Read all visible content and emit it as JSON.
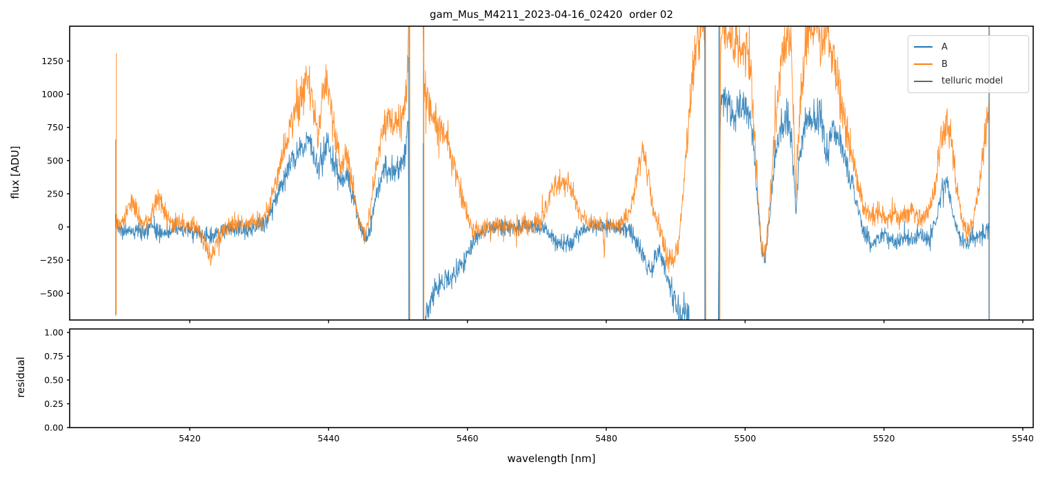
{
  "chart_data": {
    "type": "line",
    "title": "gam_Mus_M4211_2023-04-16_02420  order 02",
    "xlabel": "wavelength [nm]",
    "xlim": [
      5402.7,
      5541.5
    ],
    "xticks": [
      5420,
      5440,
      5460,
      5480,
      5500,
      5520,
      5540
    ],
    "x_data_range": [
      5409.3,
      5535.15
    ],
    "samples": 2500,
    "noise_seed": 42,
    "panels": [
      {
        "name": "flux",
        "ylabel": "flux [ADU]",
        "ylim": [
          -701,
          1512
        ],
        "yticks": [
          1250,
          1000,
          750,
          500,
          250,
          0,
          -250,
          -500
        ],
        "ytick_labels": [
          "1250",
          "1000",
          "750",
          "500",
          "250",
          "0",
          "−250",
          "−500"
        ],
        "empty": false
      },
      {
        "name": "residual",
        "ylabel": "residual",
        "ylim": [
          0,
          1.036
        ],
        "yticks": [
          1.0,
          0.75,
          0.5,
          0.25,
          0.0
        ],
        "ytick_labels": [
          "1.00",
          "0.75",
          "0.50",
          "0.25",
          "0.00"
        ],
        "empty": true
      }
    ],
    "series": [
      {
        "name": "A",
        "color": "#1f77b4",
        "opacity": 0.85,
        "noise_std": 48,
        "mean_points": [
          [
            5409.5,
            40
          ],
          [
            5410.5,
            -50
          ],
          [
            5411.5,
            -20
          ],
          [
            5413,
            -40
          ],
          [
            5414.5,
            -10
          ],
          [
            5416,
            -50
          ],
          [
            5417.5,
            -30
          ],
          [
            5419,
            -20
          ],
          [
            5420.5,
            -30
          ],
          [
            5421.8,
            -60
          ],
          [
            5423,
            -80
          ],
          [
            5424.5,
            -40
          ],
          [
            5426,
            -15
          ],
          [
            5427.5,
            -25
          ],
          [
            5429,
            -10
          ],
          [
            5430.5,
            20
          ],
          [
            5431.8,
            120
          ],
          [
            5433,
            300
          ],
          [
            5434.5,
            480
          ],
          [
            5436,
            590
          ],
          [
            5437.2,
            660
          ],
          [
            5438.4,
            430
          ],
          [
            5439.7,
            650
          ],
          [
            5440.8,
            480
          ],
          [
            5441.8,
            340
          ],
          [
            5442.8,
            380
          ],
          [
            5443.8,
            180
          ],
          [
            5444.6,
            -30
          ],
          [
            5445.4,
            -110
          ],
          [
            5446.2,
            40
          ],
          [
            5447.2,
            330
          ],
          [
            5448.2,
            450
          ],
          [
            5449.2,
            420
          ],
          [
            5450.2,
            430
          ],
          [
            5451,
            560
          ],
          [
            5451.45,
            820
          ],
          [
            5451.7,
            -900
          ],
          [
            5453.5,
            -900
          ],
          [
            5454.2,
            -620
          ],
          [
            5455.2,
            -500
          ],
          [
            5456.3,
            -420
          ],
          [
            5457.5,
            -400
          ],
          [
            5458.6,
            -330
          ],
          [
            5459.8,
            -220
          ],
          [
            5461,
            -110
          ],
          [
            5462,
            -40
          ],
          [
            5463.5,
            -10
          ],
          [
            5465,
            0
          ],
          [
            5466.5,
            -5
          ],
          [
            5468,
            5
          ],
          [
            5469.5,
            0
          ],
          [
            5471,
            -20
          ],
          [
            5472.3,
            -70
          ],
          [
            5473.6,
            -130
          ],
          [
            5475,
            -115
          ],
          [
            5476.3,
            -40
          ],
          [
            5477.5,
            0
          ],
          [
            5479,
            5
          ],
          [
            5480.5,
            0
          ],
          [
            5482,
            -5
          ],
          [
            5483.3,
            -30
          ],
          [
            5484.5,
            -120
          ],
          [
            5485.6,
            -260
          ],
          [
            5486.6,
            -320
          ],
          [
            5487.4,
            -160
          ],
          [
            5488.2,
            -260
          ],
          [
            5489,
            -440
          ],
          [
            5489.8,
            -580
          ],
          [
            5490.6,
            -690
          ],
          [
            5491.4,
            -620
          ],
          [
            5492,
            -690
          ],
          [
            5492.5,
            -900
          ],
          [
            5495.9,
            -900
          ],
          [
            5496.1,
            -900
          ],
          [
            5496.45,
            900
          ],
          [
            5497,
            1000
          ],
          [
            5497.6,
            900
          ],
          [
            5498.3,
            850
          ],
          [
            5499,
            920
          ],
          [
            5499.8,
            880
          ],
          [
            5500.6,
            840
          ],
          [
            5501.4,
            500
          ],
          [
            5502.2,
            -80
          ],
          [
            5502.8,
            -250
          ],
          [
            5503.5,
            60
          ],
          [
            5504.3,
            520
          ],
          [
            5505.2,
            760
          ],
          [
            5506,
            820
          ],
          [
            5506.7,
            700
          ],
          [
            5507.3,
            120
          ],
          [
            5507.9,
            560
          ],
          [
            5508.6,
            780
          ],
          [
            5509.4,
            820
          ],
          [
            5510.2,
            800
          ],
          [
            5511,
            830
          ],
          [
            5511.7,
            500
          ],
          [
            5512.4,
            740
          ],
          [
            5513.2,
            700
          ],
          [
            5514,
            620
          ],
          [
            5515,
            380
          ],
          [
            5516,
            180
          ],
          [
            5517,
            -20
          ],
          [
            5518.2,
            -150
          ],
          [
            5519,
            -70
          ],
          [
            5520,
            -60
          ],
          [
            5521,
            -90
          ],
          [
            5522,
            -110
          ],
          [
            5523,
            -70
          ],
          [
            5524,
            -90
          ],
          [
            5525,
            -60
          ],
          [
            5526,
            -80
          ],
          [
            5527,
            -50
          ],
          [
            5528,
            180
          ],
          [
            5528.7,
            370
          ],
          [
            5529.4,
            250
          ],
          [
            5530.2,
            30
          ],
          [
            5531,
            -80
          ],
          [
            5531.8,
            -130
          ],
          [
            5532.6,
            -80
          ],
          [
            5533.4,
            -70
          ],
          [
            5534.2,
            -50
          ],
          [
            5535.1,
            -30
          ]
        ]
      },
      {
        "name": "B",
        "color": "#ff7f0e",
        "opacity": 0.85,
        "noise_std": 55,
        "mean_points": [
          [
            5409.5,
            30
          ],
          [
            5410.5,
            40
          ],
          [
            5411.5,
            200
          ],
          [
            5412.3,
            120
          ],
          [
            5413.2,
            20
          ],
          [
            5414.3,
            60
          ],
          [
            5415.4,
            240
          ],
          [
            5416.3,
            120
          ],
          [
            5417.3,
            30
          ],
          [
            5418.5,
            40
          ],
          [
            5419.7,
            20
          ],
          [
            5421,
            10
          ],
          [
            5422.2,
            -120
          ],
          [
            5423,
            -250
          ],
          [
            5423.8,
            -120
          ],
          [
            5425,
            -10
          ],
          [
            5426.3,
            20
          ],
          [
            5427.6,
            10
          ],
          [
            5429,
            25
          ],
          [
            5430.3,
            40
          ],
          [
            5431.5,
            160
          ],
          [
            5432.8,
            420
          ],
          [
            5434.2,
            700
          ],
          [
            5435.5,
            900
          ],
          [
            5436.6,
            1030
          ],
          [
            5437.3,
            1070
          ],
          [
            5438.4,
            700
          ],
          [
            5439.3,
            1020
          ],
          [
            5440,
            1000
          ],
          [
            5440.9,
            760
          ],
          [
            5441.7,
            440
          ],
          [
            5442.5,
            540
          ],
          [
            5443.4,
            330
          ],
          [
            5444.3,
            60
          ],
          [
            5445.2,
            -60
          ],
          [
            5446,
            120
          ],
          [
            5447,
            480
          ],
          [
            5448,
            760
          ],
          [
            5448.8,
            830
          ],
          [
            5449.6,
            760
          ],
          [
            5450.4,
            800
          ],
          [
            5451.1,
            950
          ],
          [
            5451.45,
            1300
          ],
          [
            5451.7,
            1700
          ],
          [
            5453.5,
            1700
          ],
          [
            5453.8,
            1020
          ],
          [
            5454.6,
            900
          ],
          [
            5455.5,
            790
          ],
          [
            5456.5,
            740
          ],
          [
            5457.4,
            620
          ],
          [
            5458.3,
            430
          ],
          [
            5459.2,
            230
          ],
          [
            5460.1,
            60
          ],
          [
            5461,
            -40
          ],
          [
            5462,
            -20
          ],
          [
            5463.5,
            10
          ],
          [
            5465,
            20
          ],
          [
            5466.5,
            5
          ],
          [
            5468,
            15
          ],
          [
            5469.5,
            10
          ],
          [
            5470.8,
            60
          ],
          [
            5472,
            220
          ],
          [
            5473.2,
            330
          ],
          [
            5474.3,
            320
          ],
          [
            5475.4,
            230
          ],
          [
            5476.4,
            70
          ],
          [
            5477.4,
            15
          ],
          [
            5478.5,
            10
          ],
          [
            5479.55,
            0
          ],
          [
            5479.7,
            -290
          ],
          [
            5479.85,
            0
          ],
          [
            5481,
            10
          ],
          [
            5482.2,
            20
          ],
          [
            5483.4,
            120
          ],
          [
            5484.4,
            380
          ],
          [
            5485.3,
            550
          ],
          [
            5486.2,
            340
          ],
          [
            5487,
            90
          ],
          [
            5487.8,
            -40
          ],
          [
            5488.6,
            -180
          ],
          [
            5489.4,
            -270
          ],
          [
            5490.2,
            -180
          ],
          [
            5490.9,
            120
          ],
          [
            5491.6,
            600
          ],
          [
            5492.3,
            1050
          ],
          [
            5492.9,
            1400
          ],
          [
            5493.5,
            1490
          ],
          [
            5494.2,
            1470
          ],
          [
            5494.35,
            -900
          ],
          [
            5496.25,
            -900
          ],
          [
            5496.45,
            1470
          ],
          [
            5497.1,
            1490
          ],
          [
            5497.8,
            1450
          ],
          [
            5498.5,
            1380
          ],
          [
            5499.2,
            1300
          ],
          [
            5499.9,
            1340
          ],
          [
            5500.7,
            1230
          ],
          [
            5501.5,
            600
          ],
          [
            5502.3,
            -120
          ],
          [
            5502.9,
            -230
          ],
          [
            5503.6,
            200
          ],
          [
            5504.4,
            800
          ],
          [
            5505.2,
            1250
          ],
          [
            5505.9,
            1430
          ],
          [
            5506.6,
            1350
          ],
          [
            5507.3,
            280
          ],
          [
            5507.9,
            900
          ],
          [
            5508.6,
            1350
          ],
          [
            5509.4,
            1500
          ],
          [
            5510.2,
            1480
          ],
          [
            5511,
            1420
          ],
          [
            5511.8,
            1480
          ],
          [
            5512.6,
            1320
          ],
          [
            5513.5,
            1080
          ],
          [
            5514.4,
            780
          ],
          [
            5515.4,
            530
          ],
          [
            5516.3,
            300
          ],
          [
            5517.2,
            130
          ],
          [
            5518.2,
            90
          ],
          [
            5519.2,
            130
          ],
          [
            5520.2,
            60
          ],
          [
            5521.2,
            140
          ],
          [
            5522.2,
            70
          ],
          [
            5523.2,
            90
          ],
          [
            5524.2,
            130
          ],
          [
            5525.2,
            50
          ],
          [
            5526.2,
            100
          ],
          [
            5527.2,
            240
          ],
          [
            5528,
            560
          ],
          [
            5528.8,
            790
          ],
          [
            5529.6,
            680
          ],
          [
            5530.4,
            330
          ],
          [
            5531.2,
            70
          ],
          [
            5532,
            -50
          ],
          [
            5532.8,
            30
          ],
          [
            5533.6,
            280
          ],
          [
            5534.3,
            580
          ],
          [
            5534.9,
            820
          ],
          [
            5535.15,
            950
          ]
        ]
      }
    ],
    "vertical_lines": {
      "telluric": {
        "color": "#666666",
        "xs": [
          5451.6,
          5453.67,
          5494.24,
          5496.3,
          5535.16
        ]
      },
      "A_spikes": [
        [
          5409.32,
          660,
          -670
        ],
        [
          5451.55,
          1280,
          -701
        ],
        [
          5453.62,
          630,
          -701
        ],
        [
          5494.18,
          1512,
          -701
        ],
        [
          5496.22,
          1512,
          -701
        ],
        [
          5535.12,
          1512,
          -701
        ]
      ],
      "B_spikes": [
        [
          5409.42,
          1310,
          -660
        ],
        [
          5451.68,
          1512,
          -701
        ],
        [
          5453.72,
          1512,
          -701
        ],
        [
          5494.3,
          1512,
          -701
        ],
        [
          5496.36,
          1512,
          -701
        ],
        [
          5535.2,
          1512,
          -701
        ]
      ]
    },
    "legend": {
      "position": "upper right",
      "items": [
        {
          "label": "A",
          "color": "#1f77b4"
        },
        {
          "label": "B",
          "color": "#ff7f0e"
        },
        {
          "label": "telluric model",
          "color": "#666666"
        }
      ]
    }
  }
}
